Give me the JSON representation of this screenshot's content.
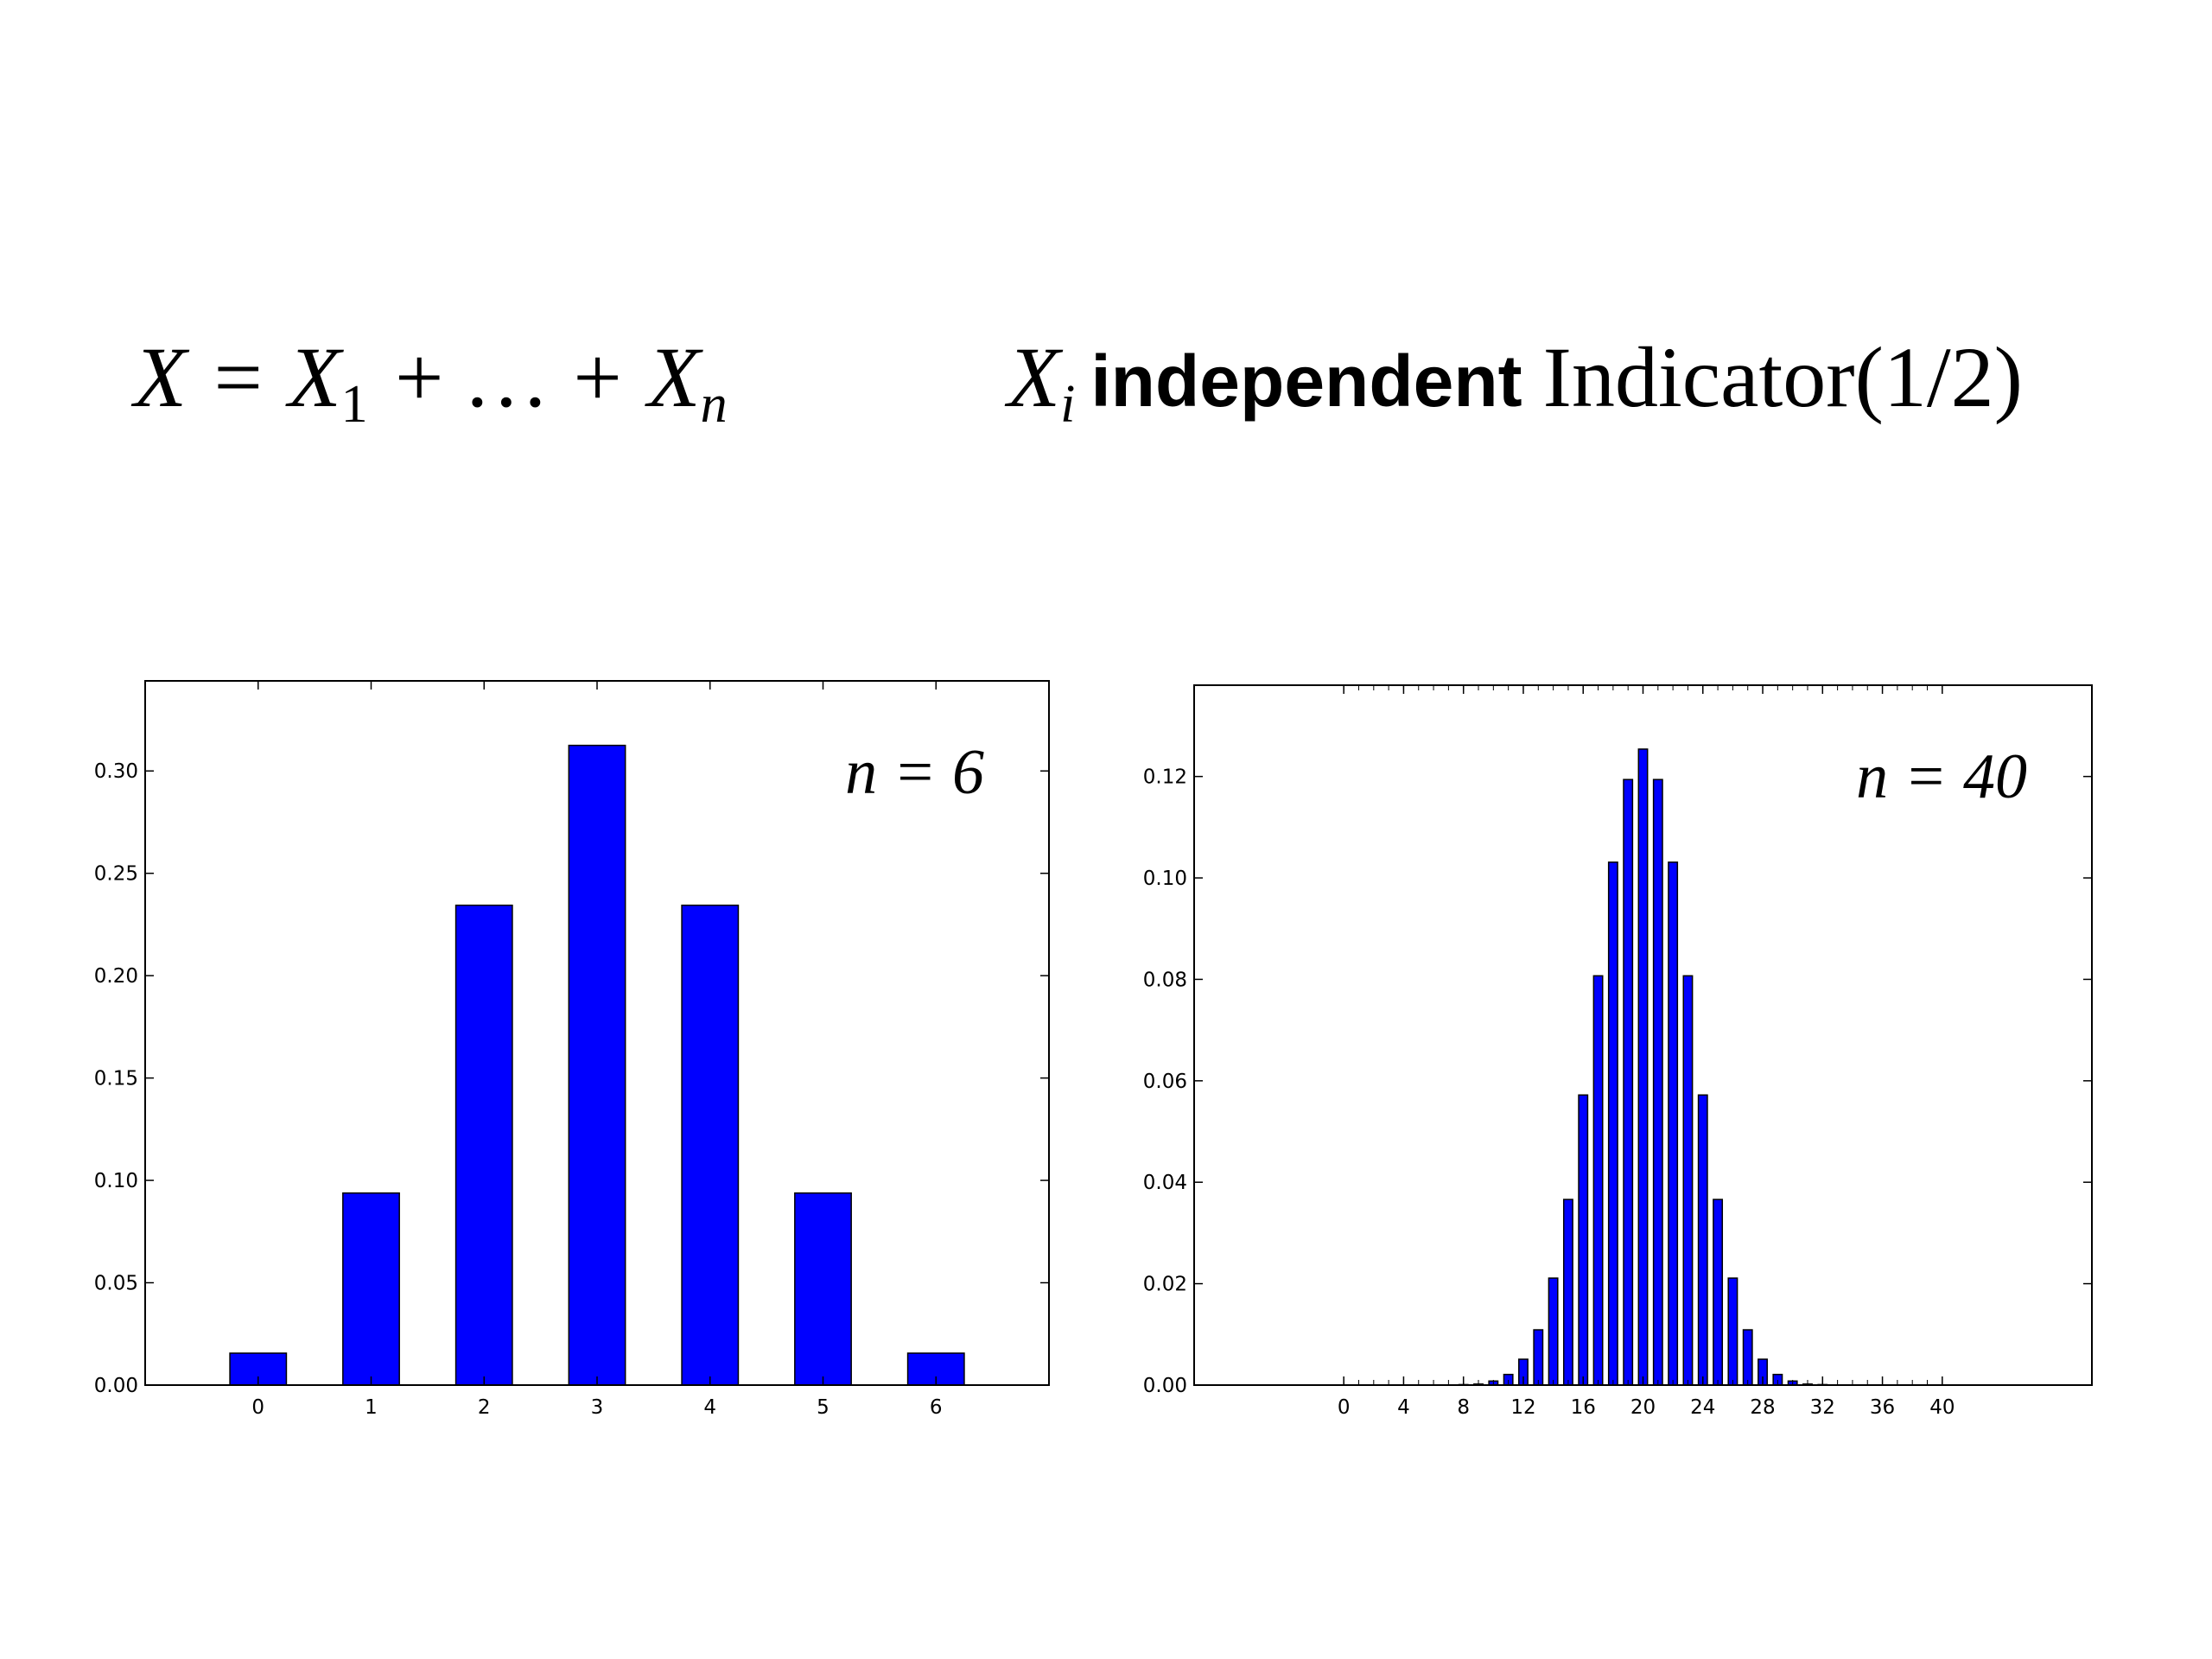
{
  "header": {
    "formula": [
      "X = X",
      "1",
      " + … + X",
      "n"
    ],
    "condition": [
      "X",
      "i",
      "independent",
      "Indicator(1/2)"
    ]
  },
  "chart_data": [
    {
      "type": "bar",
      "annotation": "n = 6",
      "color": "#0000ff",
      "x": [
        0,
        1,
        2,
        3,
        4,
        5,
        6
      ],
      "values": [
        0.0156,
        0.0938,
        0.2344,
        0.3125,
        0.2344,
        0.0938,
        0.0156
      ],
      "xlim": [
        -1,
        7
      ],
      "xticks": [
        0,
        1,
        2,
        3,
        4,
        5,
        6
      ],
      "ylim": [
        0,
        0.344
      ],
      "yticks": [
        {
          "value": 0,
          "label": "0.00"
        },
        {
          "value": 0.05,
          "label": "0.05"
        },
        {
          "value": 0.1,
          "label": "0.10"
        },
        {
          "value": 0.15,
          "label": "0.15"
        },
        {
          "value": 0.2,
          "label": "0.20"
        },
        {
          "value": 0.25,
          "label": "0.25"
        },
        {
          "value": 0.3,
          "label": "0.30"
        }
      ]
    },
    {
      "type": "bar",
      "annotation": "n = 40",
      "color": "#0000ff",
      "x": [
        0,
        1,
        2,
        3,
        4,
        5,
        6,
        7,
        8,
        9,
        10,
        11,
        12,
        13,
        14,
        15,
        16,
        17,
        18,
        19,
        20,
        21,
        22,
        23,
        24,
        25,
        26,
        27,
        28,
        29,
        30,
        31,
        32,
        33,
        34,
        35,
        36,
        37,
        38,
        39,
        40
      ],
      "values": [
        0,
        0,
        0,
        0,
        0,
        0,
        0,
        0,
        0.0001,
        0.0002,
        0.0008,
        0.0021,
        0.0051,
        0.0109,
        0.0211,
        0.0366,
        0.0572,
        0.0807,
        0.1031,
        0.1194,
        0.1254,
        0.1194,
        0.1031,
        0.0807,
        0.0572,
        0.0366,
        0.0211,
        0.0109,
        0.0051,
        0.0021,
        0.0008,
        0.0002,
        0.0001,
        0,
        0,
        0,
        0,
        0,
        0,
        0,
        0
      ],
      "xlim": [
        -10,
        50
      ],
      "xticks": [
        0,
        4,
        8,
        12,
        16,
        20,
        24,
        28,
        32,
        36,
        40
      ],
      "ylim": [
        0,
        0.138
      ],
      "yticks": [
        {
          "value": 0,
          "label": "0.00"
        },
        {
          "value": 0.02,
          "label": "0.02"
        },
        {
          "value": 0.04,
          "label": "0.04"
        },
        {
          "value": 0.06,
          "label": "0.06"
        },
        {
          "value": 0.08,
          "label": "0.08"
        },
        {
          "value": 0.1,
          "label": "0.10"
        },
        {
          "value": 0.12,
          "label": "0.12"
        }
      ]
    }
  ]
}
